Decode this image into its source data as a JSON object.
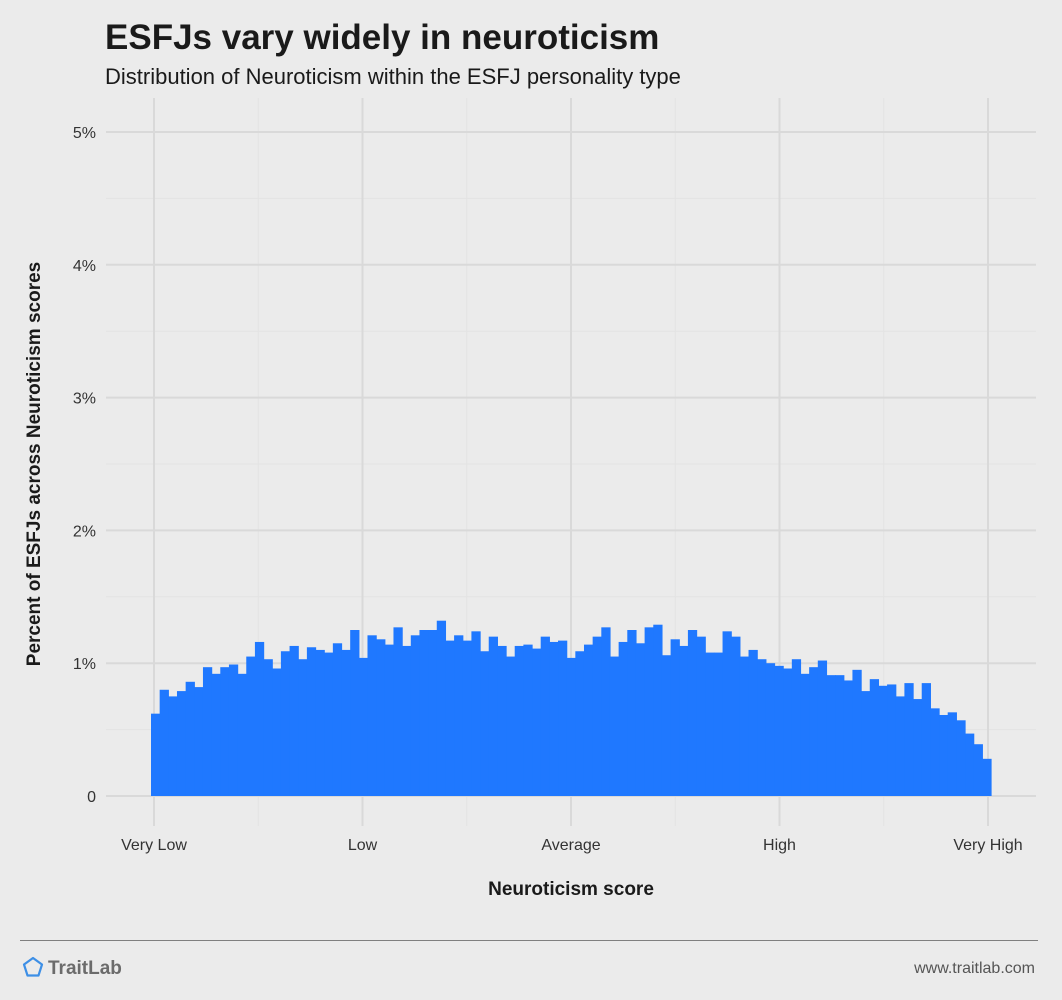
{
  "header": {
    "title": "ESFJs vary widely in neuroticism",
    "subtitle": "Distribution of Neuroticism within the ESFJ personality type"
  },
  "footer": {
    "brand": "TraitLab",
    "site": "www.traitlab.com"
  },
  "colors": {
    "background": "#ebebeb",
    "bar": "#1f78ff",
    "grid_major": "#d9d9d9",
    "grid_minor": "#e3e3e3",
    "text": "#1a1a1a",
    "brand_icon": "#3d8fe6"
  },
  "chart_data": {
    "type": "bar",
    "title": "ESFJs vary widely in neuroticism",
    "subtitle": "Distribution of Neuroticism within the ESFJ personality type",
    "xlabel": "Neuroticism score",
    "ylabel": "Percent of ESFJs across Neuroticism scores",
    "xlim": [
      0,
      100
    ],
    "ylim": [
      0,
      5
    ],
    "x_ticks": [
      {
        "value": 0,
        "label": "Very Low"
      },
      {
        "value": 25,
        "label": "Low"
      },
      {
        "value": 50,
        "label": "Average"
      },
      {
        "value": 75,
        "label": "High"
      },
      {
        "value": 100,
        "label": "Very High"
      }
    ],
    "y_ticks": [
      {
        "value": 0,
        "label": "0"
      },
      {
        "value": 1,
        "label": "1%"
      },
      {
        "value": 2,
        "label": "2%"
      },
      {
        "value": 3,
        "label": "3%"
      },
      {
        "value": 4,
        "label": "4%"
      },
      {
        "value": 5,
        "label": "5%"
      }
    ],
    "grid": true,
    "legend": "none",
    "values": [
      0.62,
      0.8,
      0.75,
      0.79,
      0.86,
      0.82,
      0.97,
      0.92,
      0.97,
      0.99,
      0.92,
      1.05,
      1.16,
      1.03,
      0.96,
      1.09,
      1.13,
      1.03,
      1.12,
      1.1,
      1.08,
      1.15,
      1.1,
      1.25,
      1.04,
      1.21,
      1.18,
      1.14,
      1.27,
      1.13,
      1.21,
      1.25,
      1.25,
      1.32,
      1.17,
      1.21,
      1.17,
      1.24,
      1.09,
      1.2,
      1.13,
      1.05,
      1.13,
      1.14,
      1.11,
      1.2,
      1.16,
      1.17,
      1.04,
      1.09,
      1.14,
      1.2,
      1.27,
      1.05,
      1.16,
      1.25,
      1.15,
      1.27,
      1.29,
      1.06,
      1.18,
      1.13,
      1.25,
      1.2,
      1.08,
      1.08,
      1.24,
      1.2,
      1.05,
      1.1,
      1.03,
      1.0,
      0.98,
      0.96,
      1.03,
      0.92,
      0.97,
      1.02,
      0.91,
      0.91,
      0.87,
      0.95,
      0.79,
      0.88,
      0.83,
      0.84,
      0.75,
      0.85,
      0.73,
      0.85,
      0.66,
      0.61,
      0.63,
      0.57,
      0.47,
      0.39,
      0.28
    ]
  }
}
